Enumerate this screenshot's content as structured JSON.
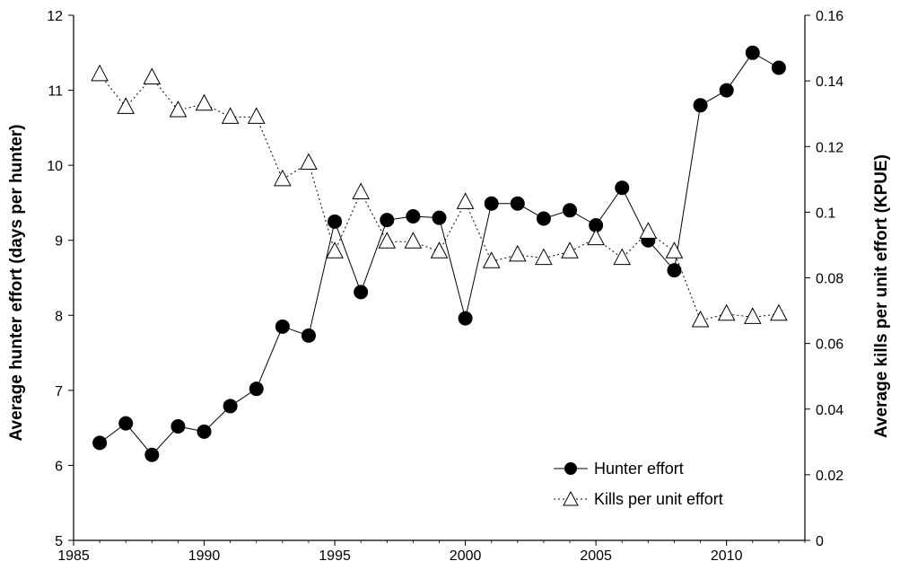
{
  "chart_data": {
    "type": "line",
    "xlim": [
      1985,
      2013
    ],
    "x_ticks": [
      "1985",
      "1990",
      "1995",
      "2000",
      "2005",
      "2010"
    ],
    "ylabel_left": "Average hunter effort (days per hunter)",
    "ylim_left": [
      5,
      12
    ],
    "y_ticks_left": [
      "5",
      "6",
      "7",
      "8",
      "9",
      "10",
      "11",
      "12"
    ],
    "ylabel_right": "Average kills per unit effort (KPUE)",
    "ylim_right": [
      0,
      0.16
    ],
    "y_ticks_right": [
      "0",
      "0.02",
      "0.04",
      "0.06",
      "0.08",
      "0.1",
      "0.12",
      "0.14",
      "0.16"
    ],
    "grid": false,
    "legend_position": "bottom-right",
    "x": [
      1986,
      1987,
      1988,
      1989,
      1990,
      1991,
      1992,
      1993,
      1994,
      1995,
      1996,
      1997,
      1998,
      1999,
      2000,
      2001,
      2002,
      2003,
      2004,
      2005,
      2006,
      2007,
      2008,
      2009,
      2010,
      2011,
      2012
    ],
    "series": [
      {
        "name": "Hunter effort",
        "axis": "left",
        "marker": "filled-circle",
        "line": "solid",
        "values": [
          6.3,
          6.56,
          6.14,
          6.52,
          6.45,
          6.79,
          7.02,
          7.85,
          7.73,
          9.25,
          8.31,
          9.27,
          9.32,
          9.3,
          7.96,
          9.49,
          9.49,
          9.29,
          9.4,
          9.2,
          9.7,
          9.0,
          8.6,
          10.8,
          11.0,
          11.5,
          11.3
        ]
      },
      {
        "name": "Kills per unit effort",
        "axis": "right",
        "marker": "open-triangle",
        "line": "dotted",
        "values": [
          0.142,
          0.132,
          0.141,
          0.131,
          0.133,
          0.129,
          0.129,
          0.11,
          0.115,
          0.088,
          0.106,
          0.091,
          0.091,
          0.088,
          0.103,
          0.085,
          0.087,
          0.086,
          0.088,
          0.092,
          0.086,
          0.094,
          0.088,
          0.067,
          0.069,
          0.068,
          0.069
        ]
      }
    ]
  }
}
